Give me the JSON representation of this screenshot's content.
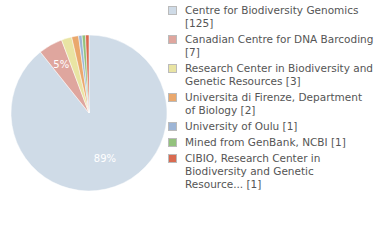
{
  "chart_data": {
    "type": "pie",
    "categories": [
      "Centre for Biodiversity Genomics [125]",
      "Canadian Centre for DNA Barcoding [7]",
      "Research Center in Biodiversity and Genetic Resources [3]",
      "Universita di Firenze, Department of Biology [2]",
      "University of Oulu [1]",
      "Mined from GenBank, NCBI [1]",
      "CIBIO, Research Center in Biodiversity and Genetic Resource... [1]"
    ],
    "values": [
      125,
      7,
      3,
      2,
      1,
      1,
      1
    ],
    "colors": [
      "#cfdbe7",
      "#dfa69e",
      "#e9e4a3",
      "#eaa86d",
      "#9db5d6",
      "#93c27d",
      "#d96a50"
    ],
    "slice_labels": [
      "89%",
      "5%",
      null,
      null,
      null,
      null,
      null
    ],
    "legend": "right"
  }
}
